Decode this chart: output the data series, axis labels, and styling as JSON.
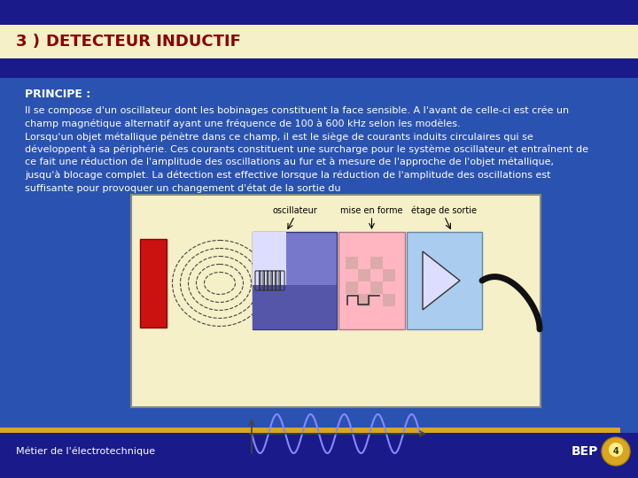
{
  "title_num": "3 )",
  "title_text": "DETECTEUR INDUCTIF",
  "title_bg": "#F5F0C8",
  "title_color": "#8B0000",
  "top_bar_color": "#1a1a8a",
  "body_bg": "#2255bb",
  "body_bg2": "#3366cc",
  "section_label": "PRINCIPE :",
  "section_label_color": "#FFFFFF",
  "body_text_color": "#FFFFFF",
  "footer_line_color": "#DAA520",
  "footer_bg": "#1a1a8a",
  "footer_left": "Métier de l'électrotechnique",
  "footer_right": "BEP",
  "footer_text_color": "#FFFFFF",
  "body_text_lines": [
    "Il se compose d'un oscillateur dont les bobinages constituent la face sensible. A l'avant de celle-ci est crée un",
    "champ magnétique alternatif ayant une fréquence de 100 à 600 kHz selon les modèles.",
    "Lorsqu'un objet métallique pénètre dans ce champ, il est le siège de courants induits circulaires qui se",
    "développent à sa périphérie. Ces courants constituent une surcharge pour le système oscillateur et entraînent de",
    "ce fait une réduction de l'amplitude des oscillations au fur et à mesure de l'approche de l'objet métallique,",
    "jusqu'à blocage complet. La détection est effective lorsque la réduction de l'amplitude des oscillations est",
    "suffisante pour provoquer un changement d'état de la sortie du"
  ],
  "diagram_bg": "#F5F0C8",
  "diagram_border": "#888888",
  "osc_label": "oscillateur",
  "mise_label": "mise en forme",
  "sortie_label": "étage de sortie",
  "osc_color": "#7777CC",
  "mise_color": "#FFB6C1",
  "sortie_color": "#AACCEE",
  "coil_color": "#333333",
  "output_wire_color": "#111111"
}
